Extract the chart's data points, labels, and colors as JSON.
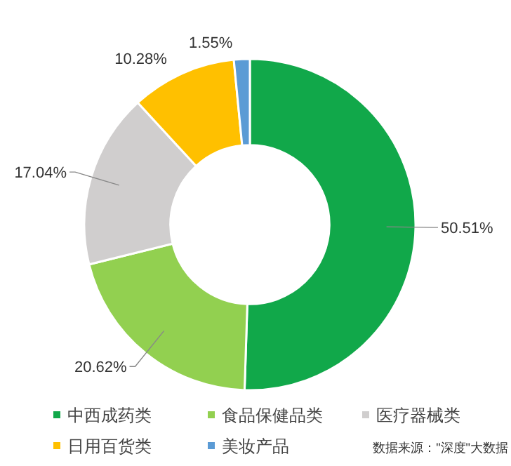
{
  "chart_data": {
    "type": "donut",
    "categories": [
      "中西成药类",
      "食品保健品类",
      "医疗器械类",
      "日用百货类",
      "美妆产品"
    ],
    "values": [
      50.51,
      20.62,
      17.04,
      10.28,
      1.55
    ],
    "colors": [
      "#11a84a",
      "#92d050",
      "#d0cece",
      "#ffc000",
      "#5b9bd5"
    ],
    "value_labels": [
      "50.51%",
      "20.62%",
      "17.04%",
      "10.28%",
      "1.55%"
    ],
    "legend": "bottom",
    "annotations": [
      "数据来源：\"深度\"大数据"
    ]
  }
}
